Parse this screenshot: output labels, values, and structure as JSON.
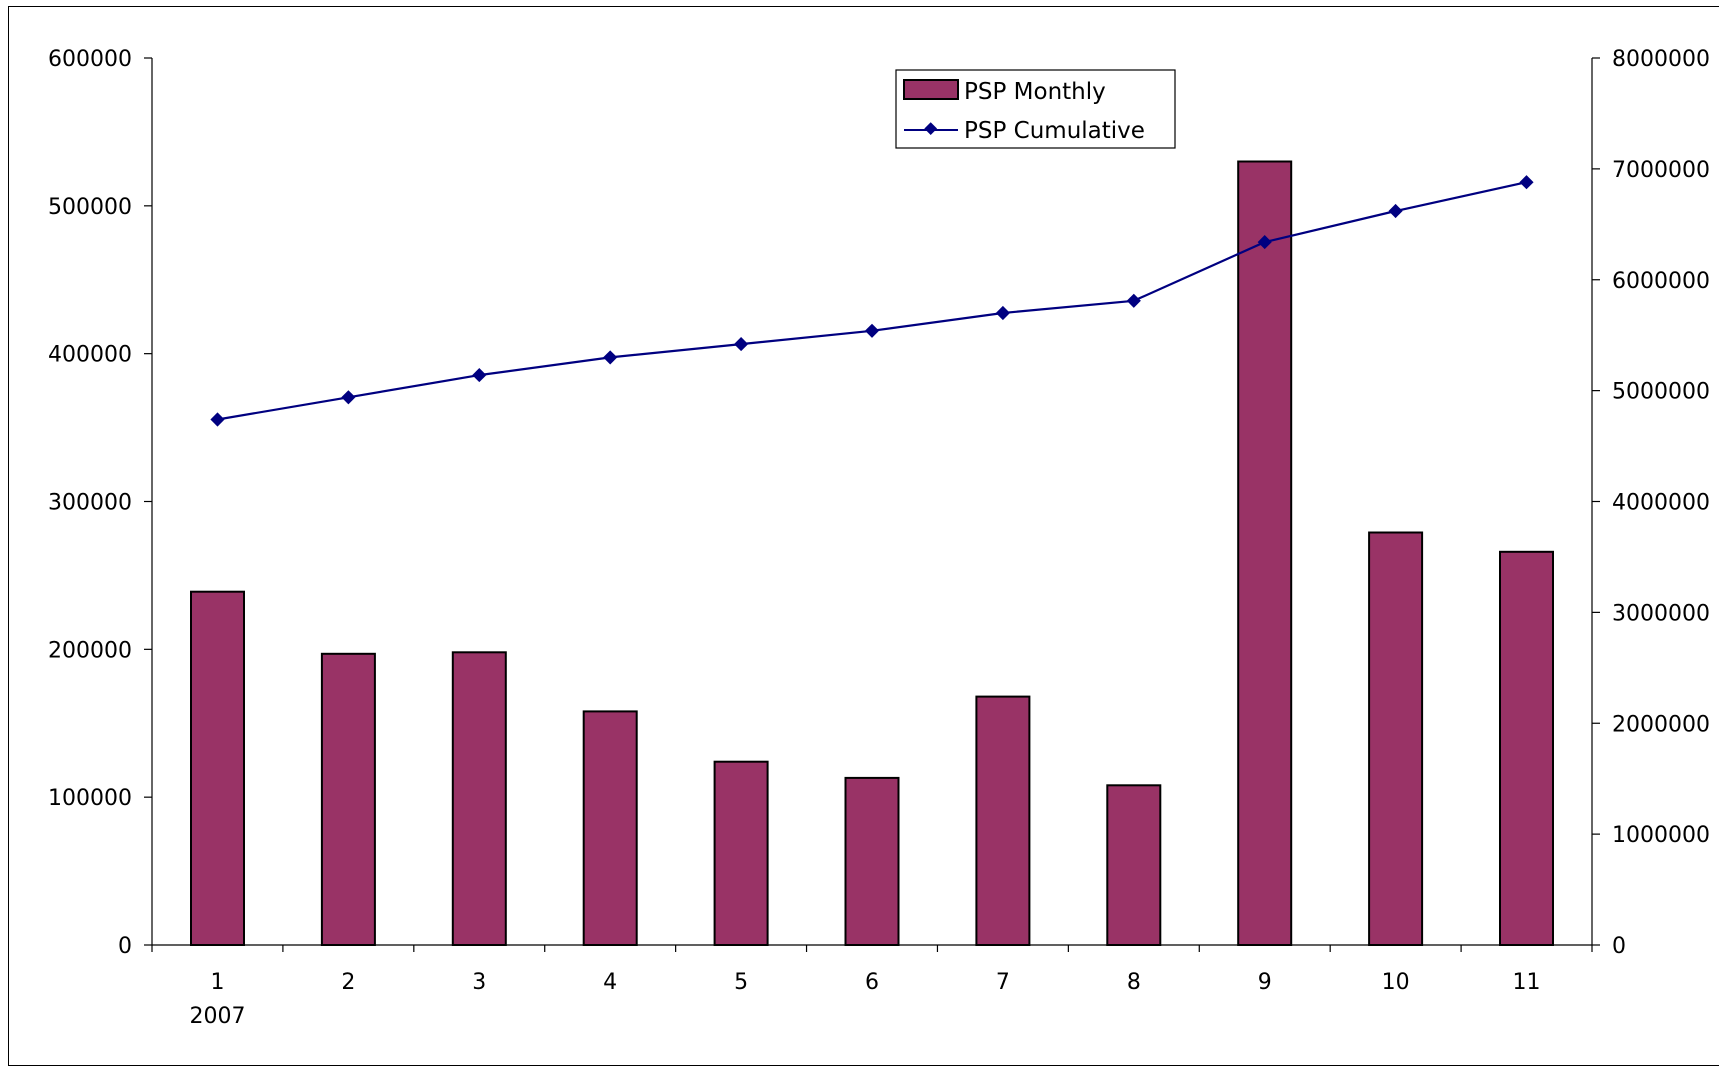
{
  "chart_data": {
    "type": "bar",
    "categories": [
      "1",
      "2",
      "3",
      "4",
      "5",
      "6",
      "7",
      "8",
      "9",
      "10",
      "11"
    ],
    "year_label": "2007",
    "series": [
      {
        "name": "PSP Monthly",
        "type": "bar",
        "axis": "left",
        "color": "#993366",
        "values": [
          239000,
          197000,
          198000,
          158000,
          124000,
          113000,
          168000,
          108000,
          530000,
          279000,
          266000
        ]
      },
      {
        "name": "PSP Cumulative",
        "type": "line",
        "axis": "right",
        "color": "#000080",
        "values": [
          4740000,
          4940000,
          5140000,
          5300000,
          5420000,
          5540000,
          5700000,
          5810000,
          6340000,
          6620000,
          6880000
        ]
      }
    ],
    "y_left": {
      "min": 0,
      "max": 600000,
      "ticks": [
        "0",
        "100000",
        "200000",
        "300000",
        "400000",
        "500000",
        "600000"
      ]
    },
    "y_right": {
      "min": 0,
      "max": 8000000,
      "ticks": [
        "0",
        "1000000",
        "2000000",
        "3000000",
        "4000000",
        "5000000",
        "6000000",
        "7000000",
        "8000000"
      ]
    },
    "legend_position": "top-center",
    "grid": false
  }
}
